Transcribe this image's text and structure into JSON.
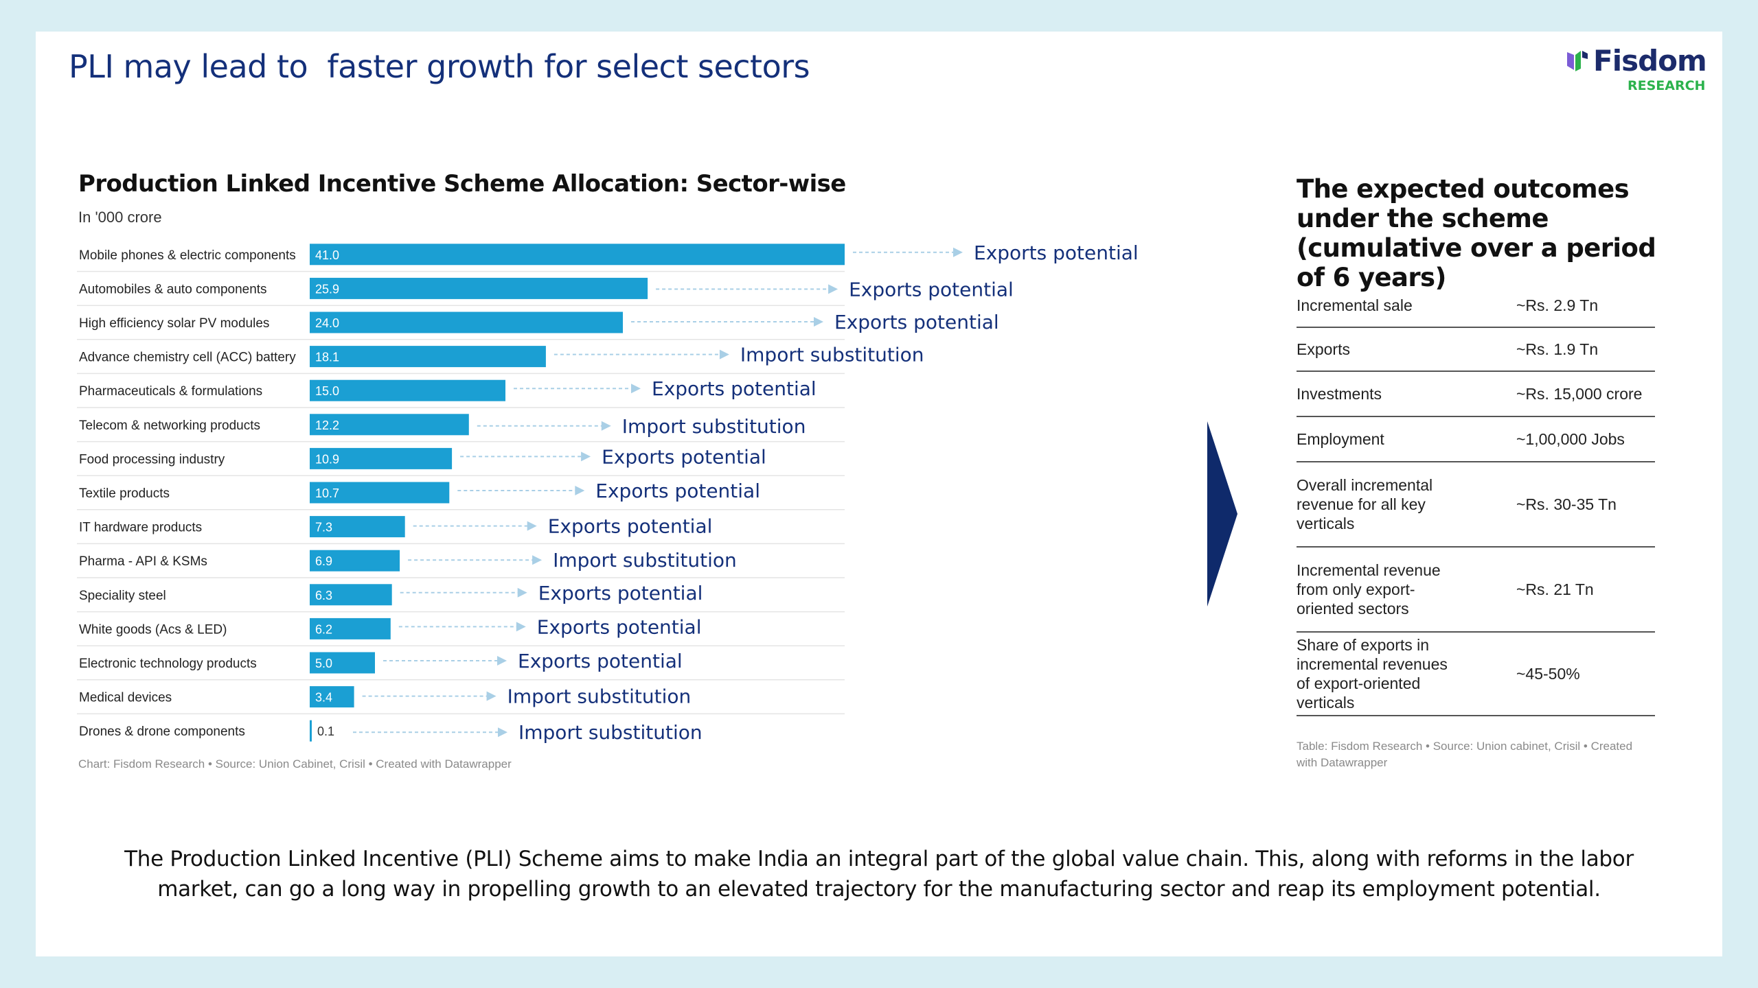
{
  "slide": {
    "title": "PLI may lead to  faster growth for select sectors",
    "logo": {
      "name": "Fisdom",
      "sub": "RESEARCH"
    },
    "bottom_text": "The Production Linked Incentive (PLI) Scheme aims to make India an integral part of the global value chain. This, along with reforms in the labor market, can go a long way in propelling growth to an elevated trajectory for the manufacturing sector and reap its employment potential."
  },
  "chart_data": {
    "type": "bar",
    "orientation": "horizontal",
    "title": "Production Linked Incentive Scheme Allocation: Sector-wise",
    "unit_label": "In '000 crore",
    "categories": [
      "Mobile phones & electric components",
      "Automobiles & auto components",
      "High efficiency solar PV modules",
      "Advance chemistry cell (ACC) battery",
      "Pharmaceuticals & formulations",
      "Telecom & networking products",
      "Food processing industry",
      "Textile products",
      "IT hardware products",
      "Pharma - API & KSMs",
      "Speciality steel",
      "White goods (Acs & LED)",
      "Electronic technology products",
      "Medical devices",
      "Drones & drone components"
    ],
    "values": [
      41.0,
      25.9,
      24.0,
      18.1,
      15.0,
      12.2,
      10.9,
      10.7,
      7.3,
      6.9,
      6.3,
      6.2,
      5.0,
      3.4,
      0.1
    ],
    "value_labels": [
      "41.0",
      "25.9",
      "24.0",
      "18.1",
      "15.0",
      "12.2",
      "10.9",
      "10.7",
      "7.3",
      "6.9",
      "6.3",
      "6.2",
      "5.0",
      "3.4",
      "0.1"
    ],
    "annotations": [
      "Exports potential",
      "Exports potential",
      "Exports potential",
      "Import substitution",
      "Exports potential",
      "Import substitution",
      "Exports potential",
      "Exports potential",
      "Exports potential",
      "Import substitution",
      "Exports potential",
      "Exports potential",
      "Exports potential",
      "Import substitution",
      "Import substitution"
    ],
    "xlim": [
      0,
      41
    ],
    "bar_color": "#1b9fd3",
    "annotation_color": "#14307a",
    "arrow_color": "#a9cfe6",
    "footer": "Chart: Fisdom Research • Source: Union Cabinet, Crisil • Created with Datawrapper"
  },
  "outcomes": {
    "heading": "The expected outcomes under the scheme (cumulative over a period of 6 years)",
    "rows": [
      {
        "label": "Incremental sale",
        "value": "~Rs. 2.9 Tn"
      },
      {
        "label": "Exports",
        "value": "~Rs. 1.9 Tn"
      },
      {
        "label": "Investments",
        "value": "~Rs. 15,000 crore"
      },
      {
        "label": "Employment",
        "value": "~1,00,000 Jobs"
      },
      {
        "label": "Overall incremental revenue for all key verticals",
        "value": "~Rs. 30-35 Tn"
      },
      {
        "label": "Incremental revenue from only export-oriented sectors",
        "value": "~Rs. 21 Tn"
      },
      {
        "label": "Share of exports in incremental revenues of export-oriented verticals",
        "value": "~45-50%"
      }
    ],
    "footer": "Table: Fisdom Research • Source: Union cabinet, Crisil • Created with Datawrapper"
  },
  "colors": {
    "page_bg": "#d9eef3",
    "title_color": "#14307a",
    "logo_green": "#2bb24c",
    "logo_navy": "#1c2b6b",
    "divider_arrow": "#0f2a6b"
  }
}
